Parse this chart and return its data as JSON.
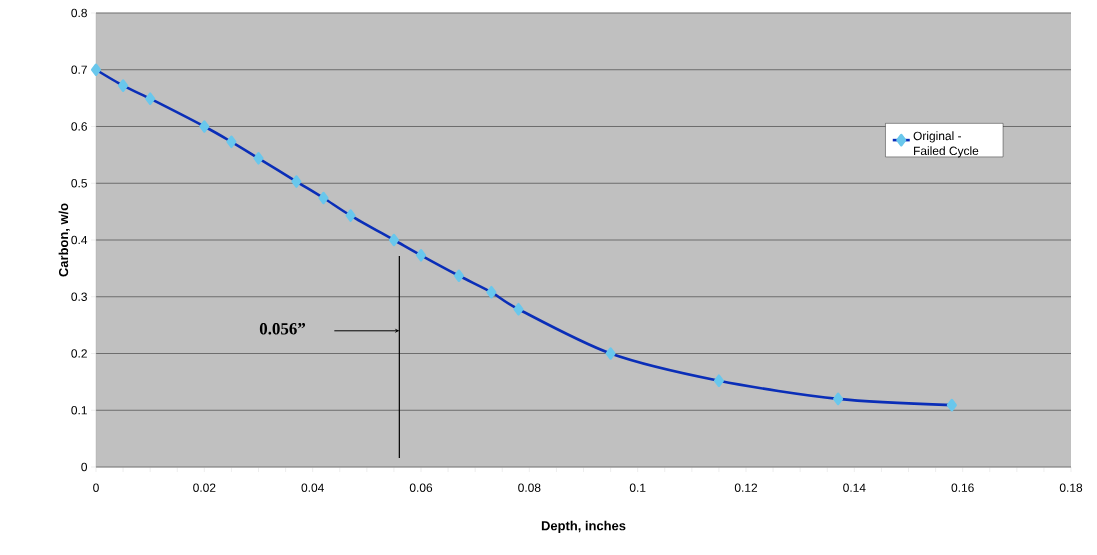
{
  "chart_data": {
    "type": "line",
    "xlabel": "Depth, inches",
    "ylabel": "Carbon, w/o",
    "series": [
      {
        "name": "Original - Failed Cycle",
        "color": "#0a2eb8",
        "x": [
          0,
          0.005,
          0.01,
          0.02,
          0.025,
          0.03,
          0.037,
          0.042,
          0.047,
          0.055,
          0.06,
          0.067,
          0.073,
          0.078,
          0.095,
          0.115,
          0.137,
          0.158
        ],
        "values": [
          0.7,
          0.672,
          0.649,
          0.6,
          0.573,
          0.544,
          0.503,
          0.474,
          0.443,
          0.4,
          0.373,
          0.337,
          0.308,
          0.278,
          0.2,
          0.152,
          0.12,
          0.109
        ]
      }
    ],
    "xlim": [
      0,
      0.18
    ],
    "xticks": [
      0,
      0.02,
      0.04,
      0.06,
      0.08,
      0.1,
      0.12,
      0.14,
      0.16,
      0.18
    ],
    "ylim": [
      0,
      0.8
    ],
    "yticks": [
      0,
      0.1,
      0.2,
      0.3,
      0.4,
      0.5,
      0.6,
      0.7,
      0.8
    ],
    "grid": "y",
    "legend": "right",
    "marker": "diamond",
    "line_style": "solid",
    "ref_lines": [
      {
        "axis": "x",
        "value": 0.056,
        "label": "0.056”",
        "color": "#000000"
      }
    ]
  }
}
